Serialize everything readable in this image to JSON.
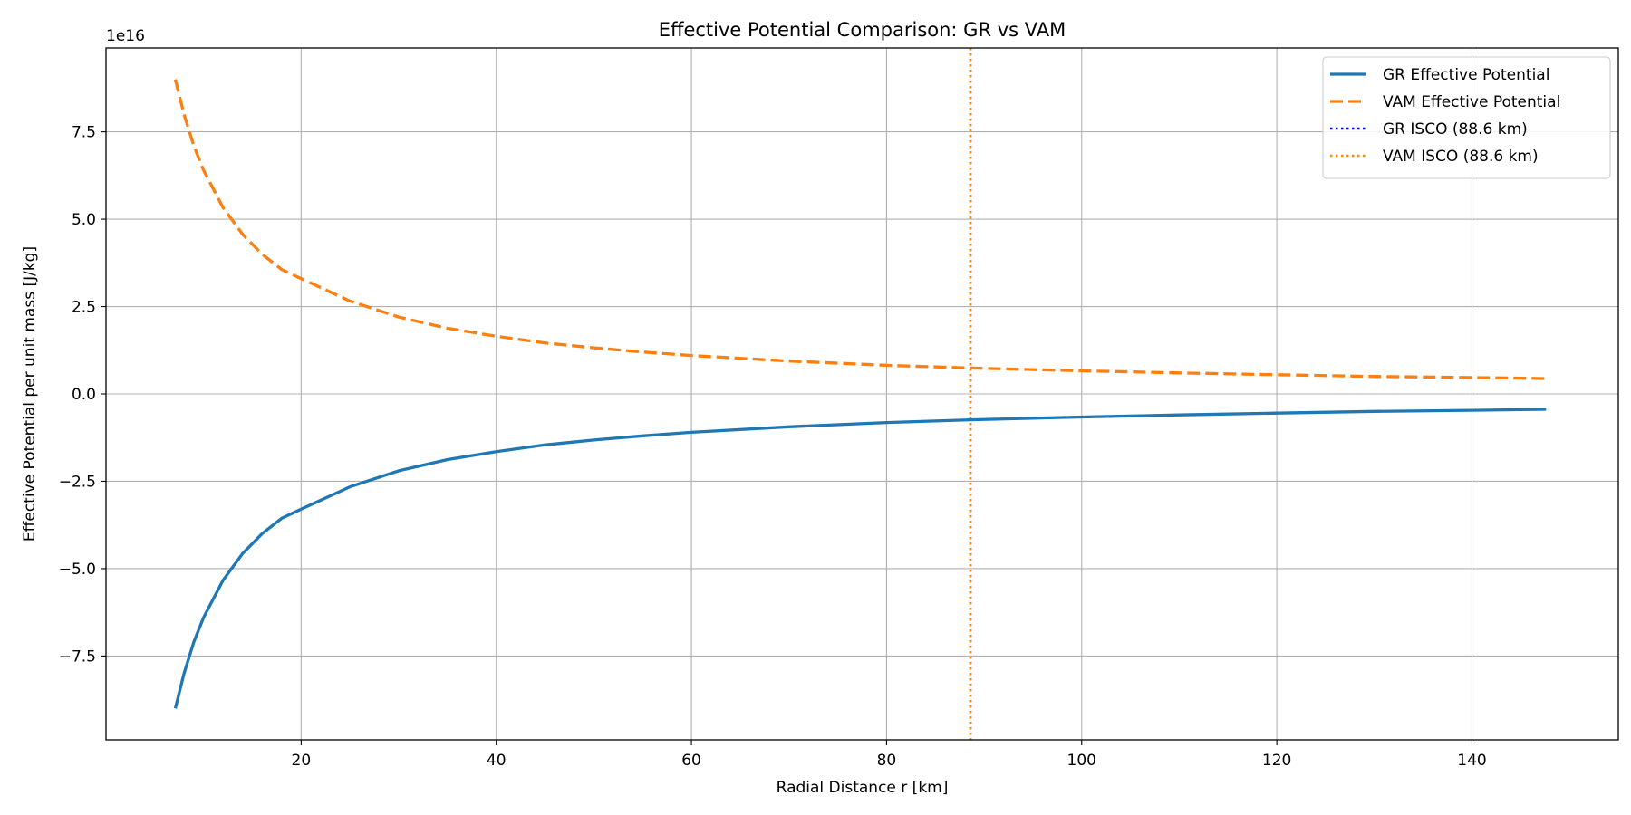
{
  "chart_data": {
    "type": "line",
    "title": "Effective Potential Comparison: GR vs VAM",
    "xlabel": "Radial Distance r [km]",
    "ylabel": "Effective Potential per unit mass [J/kg]",
    "y_offset_label": "1e16",
    "xlim": [
      0,
      155
    ],
    "ylim": [
      -9.9,
      9.9
    ],
    "y_scale": "1e16",
    "xticks": [
      20,
      40,
      60,
      80,
      100,
      120,
      140
    ],
    "xtick_labels": [
      "20",
      "40",
      "60",
      "80",
      "100",
      "120",
      "140"
    ],
    "yticks": [
      -7.5,
      -5.0,
      -2.5,
      0.0,
      2.5,
      5.0,
      7.5
    ],
    "ytick_labels": [
      "−7.5",
      "−5.0",
      "−2.5",
      "0.0",
      "2.5",
      "5.0",
      "7.5"
    ],
    "grid": true,
    "legend_position": "top-right",
    "series": [
      {
        "name": "GR Effective Potential",
        "color": "#1f77b4",
        "style": "solid",
        "x": [
          7.1,
          8,
          9,
          10,
          12,
          14,
          16,
          18,
          20,
          25,
          30,
          35,
          40,
          45,
          50,
          55,
          60,
          70,
          80,
          88.6,
          100,
          110,
          120,
          130,
          140,
          147.6
        ],
        "y": [
          -9.0,
          -8.0,
          -7.1,
          -6.4,
          -5.33,
          -4.57,
          -4.0,
          -3.56,
          -3.3,
          -2.66,
          -2.2,
          -1.88,
          -1.65,
          -1.46,
          -1.32,
          -1.2,
          -1.1,
          -0.94,
          -0.82,
          -0.74,
          -0.66,
          -0.6,
          -0.55,
          -0.5,
          -0.47,
          -0.44
        ]
      },
      {
        "name": "VAM Effective Potential",
        "color": "#ff7f0e",
        "style": "dashed",
        "x": [
          7.1,
          8,
          9,
          10,
          12,
          14,
          16,
          18,
          20,
          25,
          30,
          35,
          40,
          45,
          50,
          55,
          60,
          70,
          80,
          88.6,
          100,
          110,
          120,
          130,
          140,
          147.6
        ],
        "y": [
          9.0,
          8.0,
          7.1,
          6.4,
          5.33,
          4.57,
          4.0,
          3.56,
          3.3,
          2.66,
          2.2,
          1.88,
          1.65,
          1.46,
          1.32,
          1.2,
          1.1,
          0.94,
          0.82,
          0.74,
          0.66,
          0.6,
          0.55,
          0.5,
          0.47,
          0.44
        ]
      }
    ],
    "vlines": [
      {
        "name": "GR ISCO (88.6 km)",
        "x": 88.6,
        "color": "#0000ff",
        "style": "dotted"
      },
      {
        "name": "VAM ISCO (88.6 km)",
        "x": 88.6,
        "color": "#ff8c00",
        "style": "dotted"
      }
    ]
  }
}
